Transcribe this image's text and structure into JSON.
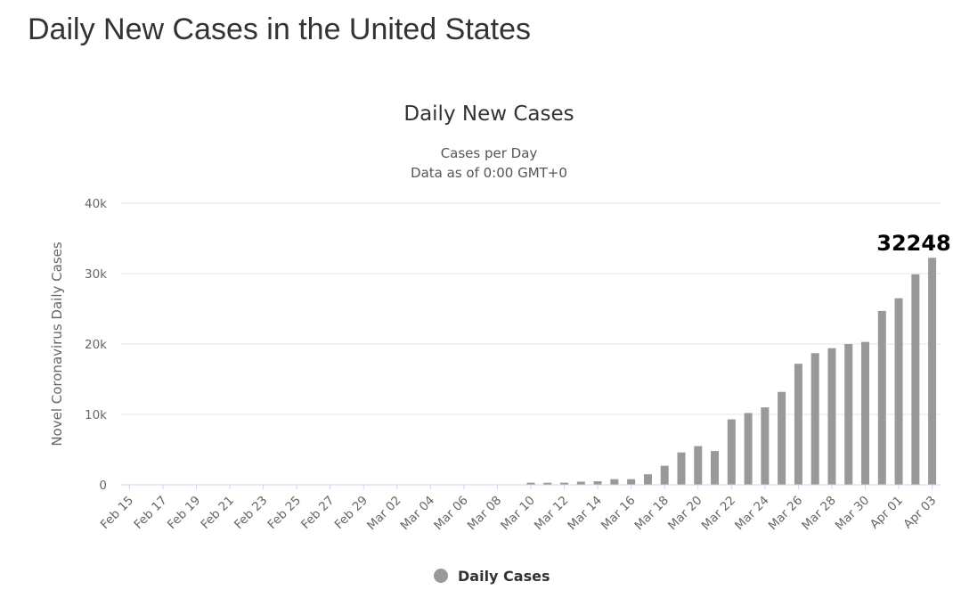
{
  "page": {
    "heading": "Daily New Cases in the United States"
  },
  "chart_data": {
    "type": "bar",
    "title": "Daily New Cases",
    "subtitle_lines": [
      "Cases per Day",
      "Data as of 0:00 GMT+0"
    ],
    "ylabel": "Novel Coronavirus Daily Cases",
    "xlabel": "",
    "ylim": [
      0,
      40000
    ],
    "yticks": [
      {
        "value": 0,
        "label": "0"
      },
      {
        "value": 10000,
        "label": "10k"
      },
      {
        "value": 20000,
        "label": "20k"
      },
      {
        "value": 30000,
        "label": "30k"
      },
      {
        "value": 40000,
        "label": "40k"
      }
    ],
    "grid": true,
    "legend_position": "bottom-center",
    "categories": [
      "Feb 15",
      "Feb 16",
      "Feb 17",
      "Feb 18",
      "Feb 19",
      "Feb 20",
      "Feb 21",
      "Feb 22",
      "Feb 23",
      "Feb 24",
      "Feb 25",
      "Feb 26",
      "Feb 27",
      "Feb 28",
      "Feb 29",
      "Mar 01",
      "Mar 02",
      "Mar 03",
      "Mar 04",
      "Mar 05",
      "Mar 06",
      "Mar 07",
      "Mar 08",
      "Mar 09",
      "Mar 10",
      "Mar 11",
      "Mar 12",
      "Mar 13",
      "Mar 14",
      "Mar 15",
      "Mar 16",
      "Mar 17",
      "Mar 18",
      "Mar 19",
      "Mar 20",
      "Mar 21",
      "Mar 22",
      "Mar 23",
      "Mar 24",
      "Mar 25",
      "Mar 26",
      "Mar 27",
      "Mar 28",
      "Mar 29",
      "Mar 30",
      "Mar 31",
      "Apr 01",
      "Apr 02",
      "Apr 03"
    ],
    "tick_labels": [
      "Feb 15",
      "Feb 17",
      "Feb 19",
      "Feb 21",
      "Feb 23",
      "Feb 25",
      "Feb 27",
      "Feb 29",
      "Mar 02",
      "Mar 04",
      "Mar 06",
      "Mar 08",
      "Mar 10",
      "Mar 12",
      "Mar 14",
      "Mar 16",
      "Mar 18",
      "Mar 20",
      "Mar 22",
      "Mar 24",
      "Mar 26",
      "Mar 28",
      "Mar 30",
      "Apr 01",
      "Apr 03"
    ],
    "series": [
      {
        "name": "Daily Cases",
        "color": "#999999",
        "values": [
          0,
          0,
          0,
          0,
          0,
          0,
          0,
          0,
          0,
          0,
          0,
          0,
          0,
          0,
          0,
          0,
          0,
          0,
          0,
          0,
          0,
          0,
          0,
          0,
          300,
          290,
          300,
          450,
          500,
          800,
          800,
          1500,
          2700,
          4600,
          5500,
          4800,
          9300,
          10200,
          11000,
          13200,
          17200,
          18700,
          19400,
          20000,
          20300,
          24700,
          26500,
          29900,
          32248
        ]
      }
    ],
    "annotation": {
      "label": "32248",
      "value": 32248,
      "category": "Apr 03"
    }
  }
}
